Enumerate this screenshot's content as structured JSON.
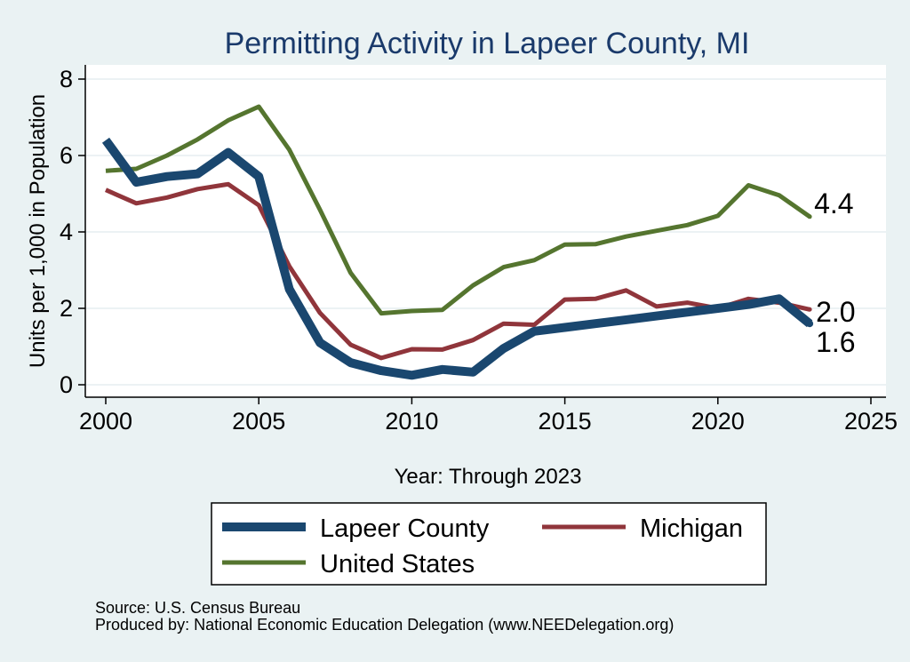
{
  "chart_data": {
    "type": "line",
    "title": "Permitting Activity in Lapeer County, MI",
    "xlabel": "Year: Through 2023",
    "ylabel": "Units per 1,000 in Population",
    "xlim": [
      2000,
      2025
    ],
    "ylim": [
      0,
      8
    ],
    "xticks": [
      "2000",
      "2005",
      "2010",
      "2015",
      "2020",
      "2025"
    ],
    "yticks": [
      "0",
      "2",
      "4",
      "6",
      "8"
    ],
    "grid": true,
    "legend_position": "bottom",
    "x": [
      2000,
      2001,
      2002,
      2003,
      2004,
      2005,
      2006,
      2007,
      2008,
      2009,
      2010,
      2011,
      2012,
      2013,
      2014,
      2015,
      2016,
      2017,
      2018,
      2019,
      2020,
      2021,
      2022,
      2023
    ],
    "series": [
      {
        "name": "Lapeer County",
        "color": "#1a476f",
        "values": [
          6.4,
          5.3,
          5.45,
          5.52,
          6.08,
          5.45,
          2.5,
          1.1,
          0.58,
          0.37,
          0.25,
          0.4,
          0.33,
          0.95,
          1.4,
          1.5,
          1.6,
          1.7,
          1.8,
          1.9,
          2.0,
          2.1,
          2.25,
          1.6
        ],
        "end_label": "1.6"
      },
      {
        "name": "Michigan",
        "color": "#90353b",
        "values": [
          5.1,
          4.75,
          4.9,
          5.12,
          5.25,
          4.7,
          3.1,
          1.88,
          1.05,
          0.7,
          0.93,
          0.92,
          1.17,
          1.6,
          1.57,
          2.23,
          2.25,
          2.47,
          2.05,
          2.15,
          2.0,
          2.25,
          2.15,
          1.97
        ],
        "end_label": "2.0"
      },
      {
        "name": "United States",
        "color": "#55752f",
        "values": [
          5.6,
          5.65,
          6.0,
          6.42,
          6.92,
          7.28,
          6.15,
          4.58,
          2.93,
          1.87,
          1.93,
          1.96,
          2.6,
          3.08,
          3.26,
          3.67,
          3.68,
          3.88,
          4.03,
          4.18,
          4.42,
          5.22,
          4.96,
          4.4
        ],
        "end_label": "4.4"
      }
    ],
    "source": "Source: U.S. Census Bureau",
    "produced_by": "Produced by: National Economic Education Delegation (www.NEEDelegation.org)"
  }
}
